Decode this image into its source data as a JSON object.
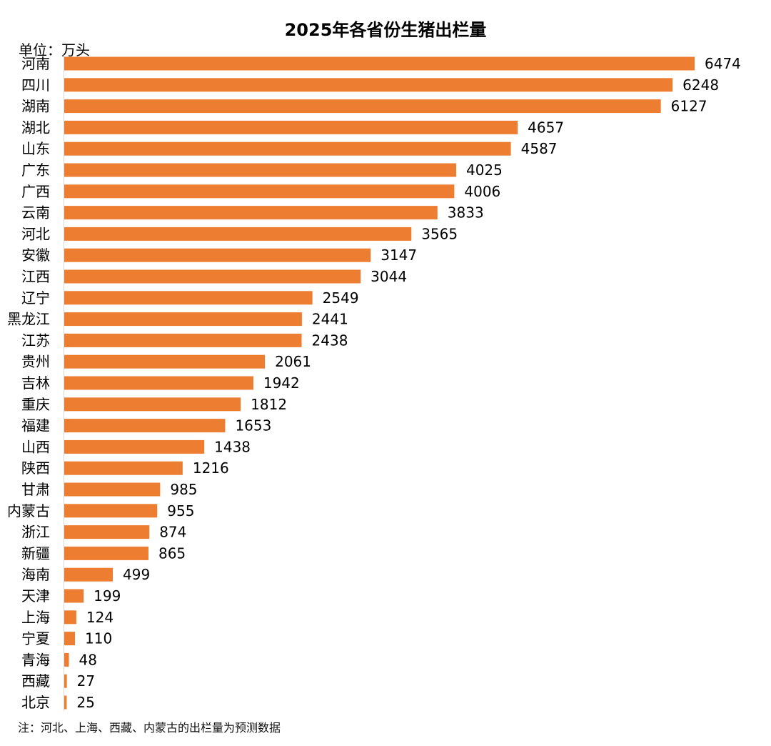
{
  "chart_data": {
    "type": "bar",
    "orientation": "horizontal",
    "title": "2025年各省份生猪出栏量",
    "unit_label": "单位：万头",
    "footnote": "注：河北、上海、西藏、内蒙古的出栏量为预测数据",
    "categories": [
      "河南",
      "四川",
      "湖南",
      "湖北",
      "山东",
      "广东",
      "广西",
      "云南",
      "河北",
      "安徽",
      "江西",
      "辽宁",
      "黑龙江",
      "江苏",
      "贵州",
      "吉林",
      "重庆",
      "福建",
      "山西",
      "陕西",
      "甘肃",
      "内蒙古",
      "浙江",
      "新疆",
      "海南",
      "天津",
      "上海",
      "宁夏",
      "青海",
      "西藏",
      "北京"
    ],
    "values": [
      6474,
      6248,
      6127,
      4657,
      4587,
      4025,
      4006,
      3833,
      3565,
      3147,
      3044,
      2549,
      2441,
      2438,
      2061,
      1942,
      1812,
      1653,
      1438,
      1216,
      985,
      955,
      874,
      865,
      499,
      199,
      124,
      110,
      48,
      27,
      25
    ],
    "xlim": [
      0,
      6474
    ],
    "bar_color": "#ed7d31",
    "axis_color": "#d9d9d9",
    "grid": false,
    "legend": "none"
  }
}
